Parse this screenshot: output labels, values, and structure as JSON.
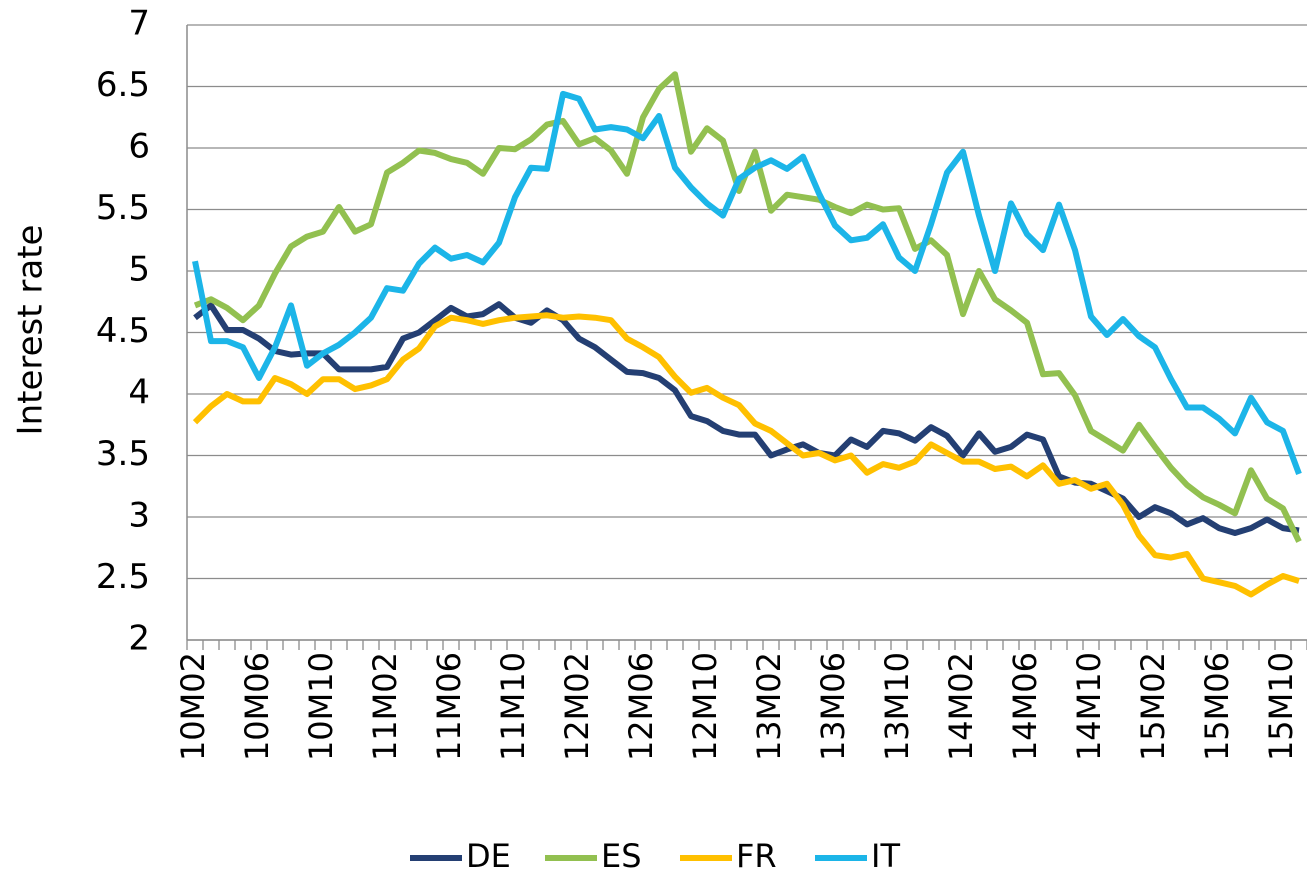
{
  "chart_data": {
    "type": "line",
    "ylabel": "Interest rate",
    "categories": [
      "10M02",
      null,
      null,
      null,
      "10M06",
      null,
      null,
      null,
      "10M10",
      null,
      null,
      null,
      "11M02",
      null,
      null,
      null,
      "11M06",
      null,
      null,
      null,
      "11M10",
      null,
      null,
      null,
      "12M02",
      null,
      null,
      null,
      "12M06",
      null,
      null,
      null,
      "12M10",
      null,
      null,
      null,
      "13M02",
      null,
      null,
      null,
      "13M06",
      null,
      null,
      null,
      "13M10",
      null,
      null,
      null,
      "14M02",
      null,
      null,
      null,
      "14M06",
      null,
      null,
      null,
      "14M10",
      null,
      null,
      null,
      "15M02",
      null,
      null,
      null,
      "15M06",
      null,
      null,
      null,
      "15M10",
      null
    ],
    "series": [
      {
        "name": "DE",
        "color": "#243f73",
        "values": [
          4.62,
          4.72,
          4.52,
          4.52,
          4.45,
          4.35,
          4.32,
          4.33,
          4.33,
          4.2,
          4.2,
          4.2,
          4.22,
          4.45,
          4.5,
          4.6,
          4.7,
          4.63,
          4.65,
          4.73,
          4.62,
          4.58,
          4.68,
          4.6,
          4.45,
          4.38,
          4.28,
          4.18,
          4.17,
          4.13,
          4.03,
          3.82,
          3.78,
          3.7,
          3.67,
          3.67,
          3.5,
          3.55,
          3.59,
          3.52,
          3.5,
          3.63,
          3.57,
          3.7,
          3.68,
          3.62,
          3.73,
          3.66,
          3.5,
          3.68,
          3.53,
          3.57,
          3.67,
          3.63,
          3.33,
          3.28,
          3.27,
          3.21,
          3.15,
          3.0,
          3.08,
          3.03,
          2.94,
          2.99,
          2.91,
          2.87,
          2.91,
          2.98,
          2.91,
          2.89
        ]
      },
      {
        "name": "ES",
        "color": "#92c050",
        "values": [
          4.72,
          4.77,
          4.7,
          4.6,
          4.72,
          4.98,
          5.2,
          5.28,
          5.32,
          5.52,
          5.32,
          5.38,
          5.8,
          5.88,
          5.98,
          5.96,
          5.91,
          5.88,
          5.79,
          6.0,
          5.99,
          6.07,
          6.19,
          6.22,
          6.03,
          6.08,
          5.98,
          5.79,
          6.25,
          6.48,
          6.6,
          5.97,
          6.16,
          6.06,
          5.65,
          5.97,
          5.49,
          5.62,
          5.6,
          5.58,
          5.52,
          5.47,
          5.54,
          5.5,
          5.51,
          5.18,
          5.25,
          5.13,
          4.65,
          5.0,
          4.77,
          4.68,
          4.58,
          4.16,
          4.17,
          3.99,
          3.7,
          3.62,
          3.54,
          3.75,
          3.57,
          3.4,
          3.26,
          3.16,
          3.1,
          3.03,
          3.38,
          3.15,
          3.07,
          2.8
        ]
      },
      {
        "name": "FR",
        "color": "#ffc000",
        "values": [
          3.77,
          3.9,
          4.0,
          3.94,
          3.94,
          4.13,
          4.08,
          4.0,
          4.12,
          4.12,
          4.04,
          4.07,
          4.12,
          4.28,
          4.37,
          4.55,
          4.62,
          4.6,
          4.57,
          4.6,
          4.62,
          4.63,
          4.64,
          4.62,
          4.63,
          4.62,
          4.6,
          4.45,
          4.38,
          4.3,
          4.14,
          4.01,
          4.05,
          3.97,
          3.91,
          3.76,
          3.7,
          3.6,
          3.5,
          3.52,
          3.46,
          3.5,
          3.36,
          3.43,
          3.4,
          3.45,
          3.59,
          3.52,
          3.45,
          3.45,
          3.39,
          3.41,
          3.33,
          3.42,
          3.27,
          3.3,
          3.23,
          3.27,
          3.1,
          2.85,
          2.69,
          2.67,
          2.7,
          2.5,
          2.47,
          2.44,
          2.37,
          2.45,
          2.52,
          2.48
        ]
      },
      {
        "name": "IT",
        "color": "#1cb5e8",
        "values": [
          5.08,
          4.43,
          4.43,
          4.38,
          4.13,
          4.38,
          4.72,
          4.23,
          4.33,
          4.4,
          4.5,
          4.62,
          4.86,
          4.84,
          5.06,
          5.19,
          5.1,
          5.13,
          5.07,
          5.23,
          5.6,
          5.84,
          5.83,
          6.44,
          6.4,
          6.15,
          6.17,
          6.15,
          6.08,
          6.26,
          5.84,
          5.68,
          5.55,
          5.45,
          5.75,
          5.84,
          5.9,
          5.83,
          5.93,
          5.63,
          5.37,
          5.25,
          5.27,
          5.38,
          5.11,
          5.0,
          5.38,
          5.8,
          5.97,
          5.45,
          5.0,
          5.55,
          5.3,
          5.17,
          5.54,
          5.17,
          4.63,
          4.48,
          4.61,
          4.47,
          4.38,
          4.12,
          3.89,
          3.89,
          3.8,
          3.68,
          3.97,
          3.77,
          3.7,
          3.35
        ]
      }
    ],
    "ylim": [
      2,
      7
    ],
    "yticks": [
      2,
      2.5,
      3,
      3.5,
      4,
      4.5,
      5,
      5.5,
      6,
      6.5,
      7
    ],
    "grid": true,
    "legend": "bottom"
  }
}
